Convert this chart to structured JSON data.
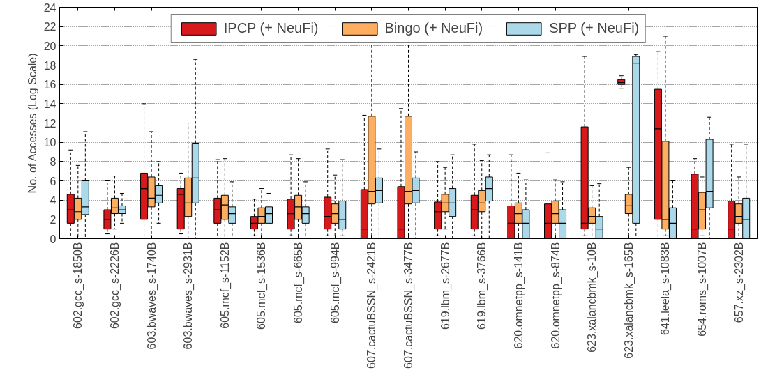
{
  "chart_data": {
    "type": "box",
    "ylabel": "No. of Accesses (Log Scale)",
    "categories": [
      "602.gcc_s-1850B",
      "602.gcc_s-2226B",
      "603.bwaves_s-1740B",
      "603.bwaves_s-2931B",
      "605.mcf_s-1152B",
      "605.mcf_s-1536B",
      "605.mcf_s-665B",
      "605.mcf_s-994B",
      "607.cactuBSSN_s-2421B",
      "607.cactuBSSN_s-3477B",
      "619.lbm_s-2677B",
      "619.lbm_s-3766B",
      "620.omnetpp_s-141B",
      "620.omnetpp_s-874B",
      "623.xalancbmk_s-10B",
      "623.xalancbmk_s-165B",
      "641.leela_s-1083B",
      "654.roms_s-1007B",
      "657.xz_s-2302B"
    ],
    "ylim": [
      0,
      24
    ],
    "yticks": [
      0,
      2,
      4,
      6,
      8,
      10,
      12,
      14,
      16,
      18,
      20,
      22,
      24
    ],
    "grid": "y",
    "legend": "top",
    "series": [
      {
        "name": "IPCP (+ NeuFi)",
        "color": "#d7191c",
        "boxes": [
          {
            "low": 0,
            "q1": 1.6,
            "median": 3.0,
            "q3": 4.6,
            "high": 9.2
          },
          {
            "low": 0.5,
            "q1": 1.0,
            "median": 2.0,
            "q3": 3.0,
            "high": 6.0
          },
          {
            "low": 0,
            "q1": 2.0,
            "median": 5.2,
            "q3": 6.8,
            "high": 14.0
          },
          {
            "low": 0.5,
            "q1": 1.0,
            "median": 4.6,
            "q3": 5.2,
            "high": 6.8
          },
          {
            "low": 0,
            "q1": 1.6,
            "median": 3.0,
            "q3": 4.2,
            "high": 8.2
          },
          {
            "low": 0.3,
            "q1": 1.0,
            "median": 1.6,
            "q3": 2.3,
            "high": 4.1
          },
          {
            "low": 0.3,
            "q1": 1.0,
            "median": 2.6,
            "q3": 4.1,
            "high": 8.7
          },
          {
            "low": 0.3,
            "q1": 1.0,
            "median": 2.3,
            "q3": 4.3,
            "high": 9.3
          },
          {
            "low": 0,
            "q1": 0,
            "median": 1.0,
            "q3": 5.1,
            "high": 12.8
          },
          {
            "low": 0,
            "q1": 0,
            "median": 1.0,
            "q3": 5.4,
            "high": 13.5
          },
          {
            "low": 0.3,
            "q1": 1.0,
            "median": 2.8,
            "q3": 3.8,
            "high": 8.0
          },
          {
            "low": 0.3,
            "q1": 1.0,
            "median": 3.0,
            "q3": 4.5,
            "high": 9.8
          },
          {
            "low": 0,
            "q1": 0,
            "median": 1.6,
            "q3": 3.4,
            "high": 8.7
          },
          {
            "low": 0,
            "q1": 0,
            "median": 1.6,
            "q3": 3.6,
            "high": 8.9
          },
          {
            "low": 0.3,
            "q1": 1.0,
            "median": 1.6,
            "q3": 11.6,
            "high": 18.9
          },
          {
            "low": 15.6,
            "q1": 16.0,
            "median": 16.2,
            "q3": 16.5,
            "high": 16.9
          },
          {
            "low": 0,
            "q1": 2.0,
            "median": 11.4,
            "q3": 15.5,
            "high": 19.4
          },
          {
            "low": 0,
            "q1": 0,
            "median": 1.0,
            "q3": 6.7,
            "high": 8.3
          },
          {
            "low": 0,
            "q1": 0,
            "median": 1.0,
            "q3": 3.9,
            "high": 9.8
          }
        ]
      },
      {
        "name": "Bingo (+ NeuFi)",
        "color": "#fdae61",
        "boxes": [
          {
            "low": 0,
            "q1": 2.0,
            "median": 2.8,
            "q3": 4.2,
            "high": 7.6
          },
          {
            "low": 1.0,
            "q1": 2.6,
            "median": 3.2,
            "q3": 4.2,
            "high": 6.5
          },
          {
            "low": 0,
            "q1": 3.3,
            "median": 4.2,
            "q3": 6.4,
            "high": 11.1
          },
          {
            "low": 0,
            "q1": 2.3,
            "median": 3.7,
            "q3": 6.3,
            "high": 12.0
          },
          {
            "low": 0,
            "q1": 2.0,
            "median": 3.5,
            "q3": 4.5,
            "high": 8.3
          },
          {
            "low": 0,
            "q1": 1.6,
            "median": 2.3,
            "q3": 3.2,
            "high": 5.2
          },
          {
            "low": 0,
            "q1": 2.0,
            "median": 3.3,
            "q3": 4.5,
            "high": 8.3
          },
          {
            "low": 0,
            "q1": 1.6,
            "median": 2.6,
            "q3": 3.6,
            "high": 6.6
          },
          {
            "low": 0,
            "q1": 3.6,
            "median": 4.9,
            "q3": 12.7,
            "high": 21
          },
          {
            "low": 0,
            "q1": 3.6,
            "median": 4.9,
            "q3": 12.7,
            "high": 21
          },
          {
            "low": 1.0,
            "q1": 2.8,
            "median": 3.7,
            "q3": 4.6,
            "high": 7.4
          },
          {
            "low": 0,
            "q1": 2.8,
            "median": 3.7,
            "q3": 5.0,
            "high": 8.1
          },
          {
            "low": 0,
            "q1": 1.6,
            "median": 2.6,
            "q3": 3.7,
            "high": 6.8
          },
          {
            "low": 0,
            "q1": 1.6,
            "median": 2.6,
            "q3": 3.9,
            "high": 6.1
          },
          {
            "low": 0,
            "q1": 1.6,
            "median": 2.3,
            "q3": 3.2,
            "high": 5.5
          },
          {
            "low": 0,
            "q1": 2.6,
            "median": 3.4,
            "q3": 4.6,
            "high": 7.4
          },
          {
            "low": 0.3,
            "q1": 1.0,
            "median": 2.0,
            "q3": 10.1,
            "high": 21
          },
          {
            "low": 0.3,
            "q1": 1.0,
            "median": 3.0,
            "q3": 4.8,
            "high": 6.4
          },
          {
            "low": 0,
            "q1": 1.6,
            "median": 2.3,
            "q3": 3.6,
            "high": 6.4
          }
        ]
      },
      {
        "name": "SPP (+ NeuFi)",
        "color": "#abd9e9",
        "boxes": [
          {
            "low": 0,
            "q1": 2.5,
            "median": 3.3,
            "q3": 6.0,
            "high": 11.1
          },
          {
            "low": 1.6,
            "q1": 2.6,
            "median": 3.0,
            "q3": 3.4,
            "high": 4.7
          },
          {
            "low": 1.6,
            "q1": 3.7,
            "median": 4.5,
            "q3": 5.5,
            "high": 8.0
          },
          {
            "low": 0,
            "q1": 3.7,
            "median": 6.3,
            "q3": 9.9,
            "high": 18.6
          },
          {
            "low": 0,
            "q1": 1.6,
            "median": 2.6,
            "q3": 3.3,
            "high": 5.9
          },
          {
            "low": 0,
            "q1": 1.6,
            "median": 2.6,
            "q3": 3.3,
            "high": 4.7
          },
          {
            "low": 0,
            "q1": 1.6,
            "median": 2.6,
            "q3": 3.3,
            "high": 5.9
          },
          {
            "low": 0.3,
            "q1": 1.0,
            "median": 2.0,
            "q3": 3.9,
            "high": 8.2
          },
          {
            "low": 0,
            "q1": 3.7,
            "median": 5.0,
            "q3": 6.3,
            "high": 9.3
          },
          {
            "low": 0,
            "q1": 3.7,
            "median": 5.0,
            "q3": 6.3,
            "high": 9.0
          },
          {
            "low": 0,
            "q1": 2.3,
            "median": 3.7,
            "q3": 5.2,
            "high": 8.7
          },
          {
            "low": 0,
            "q1": 3.9,
            "median": 5.2,
            "q3": 6.4,
            "high": 8.7
          },
          {
            "low": 0,
            "q1": 0,
            "median": 1.6,
            "q3": 3.0,
            "high": 6.1
          },
          {
            "low": 0,
            "q1": 0,
            "median": 1.6,
            "q3": 3.0,
            "high": 5.9
          },
          {
            "low": 0,
            "q1": 0,
            "median": 1.0,
            "q3": 2.3,
            "high": 5.7
          },
          {
            "low": 0,
            "q1": 1.6,
            "median": 18.2,
            "q3": 18.9,
            "high": 19.1
          },
          {
            "low": 0,
            "q1": 0,
            "median": 1.6,
            "q3": 3.2,
            "high": 6.0
          },
          {
            "low": 0,
            "q1": 3.2,
            "median": 4.9,
            "q3": 10.3,
            "high": 12.6
          },
          {
            "low": 0,
            "q1": 0,
            "median": 2.0,
            "q3": 4.2,
            "high": 9.8
          }
        ]
      }
    ]
  }
}
